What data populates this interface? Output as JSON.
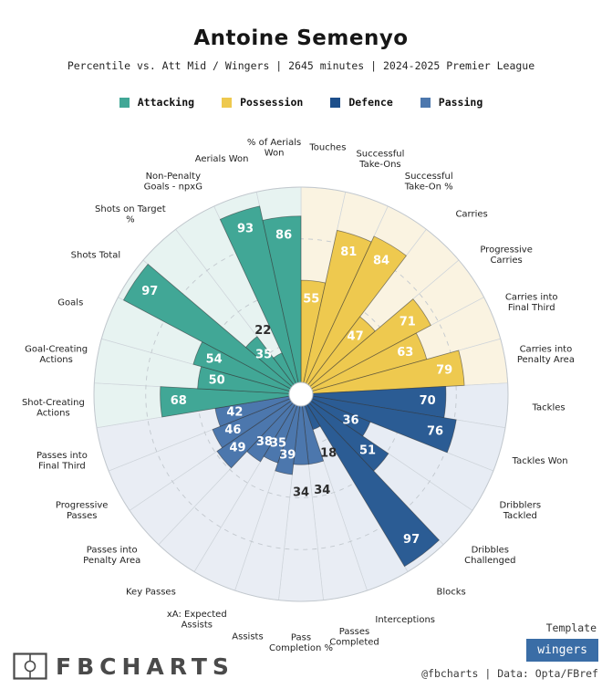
{
  "header": {
    "title": "Antoine Semenyo",
    "subtitle": "Percentile vs. Att Mid / Wingers | 2645 minutes | 2024-2025 Premier League"
  },
  "legend": [
    {
      "label": "Attacking",
      "color": "#41a796"
    },
    {
      "label": "Possession",
      "color": "#eec94f"
    },
    {
      "label": "Defence",
      "color": "#1d4f8b"
    },
    {
      "label": "Passing",
      "color": "#4c77ad"
    }
  ],
  "groups": {
    "Attacking": {
      "color": "#41a796",
      "bg": "#e7f3f1"
    },
    "Possession": {
      "color": "#eec94f",
      "bg": "#faf3e1"
    },
    "Defence": {
      "color": "#2b5c94",
      "bg": "#e7ecf4"
    },
    "Passing": {
      "color": "#4c77ad",
      "bg": "#e9edf4"
    }
  },
  "chart_data": {
    "type": "bar",
    "layout": "polar-pizza",
    "title": "Antoine Semenyo percentile pizza",
    "rlim": [
      0,
      100
    ],
    "gridlines": [
      25,
      50,
      75,
      100
    ],
    "grid_style": "dashed",
    "start": "12-oclock, clockwise",
    "slices": [
      {
        "label": "Touches",
        "value": 55,
        "group": "Possession"
      },
      {
        "label": "Successful\nTake-Ons",
        "value": 81,
        "group": "Possession"
      },
      {
        "label": "Successful\nTake-On %",
        "value": 84,
        "group": "Possession"
      },
      {
        "label": "Carries",
        "value": 47,
        "group": "Possession"
      },
      {
        "label": "Progressive\nCarries",
        "value": 71,
        "group": "Possession"
      },
      {
        "label": "Carries into\nFinal Third",
        "value": 63,
        "group": "Possession"
      },
      {
        "label": "Carries into\nPenalty Area",
        "value": 79,
        "group": "Possession"
      },
      {
        "label": "Tackles",
        "value": 70,
        "group": "Defence"
      },
      {
        "label": "Tackles Won",
        "value": 76,
        "group": "Defence"
      },
      {
        "label": "Dribblers\nTackled",
        "value": 36,
        "group": "Defence"
      },
      {
        "label": "Dribbles\nChallenged",
        "value": 51,
        "group": "Defence"
      },
      {
        "label": "Blocks",
        "value": 97,
        "group": "Defence"
      },
      {
        "label": "Interceptions",
        "value": 18,
        "group": "Defence"
      },
      {
        "label": "Passes\nCompleted",
        "value": 34,
        "group": "Passing"
      },
      {
        "label": "Pass\nCompletion %",
        "value": 34,
        "group": "Passing"
      },
      {
        "label": "Assists",
        "value": 39,
        "group": "Passing"
      },
      {
        "label": "xA: Expected\nAssists",
        "value": 35,
        "group": "Passing"
      },
      {
        "label": "Key Passes",
        "value": 38,
        "group": "Passing"
      },
      {
        "label": "Passes into\nPenalty Area",
        "value": 49,
        "group": "Passing"
      },
      {
        "label": "Progressive\nPasses",
        "value": 46,
        "group": "Passing"
      },
      {
        "label": "Passes into\nFinal Third",
        "value": 42,
        "group": "Passing"
      },
      {
        "label": "Shot-Creating\nActions",
        "value": 68,
        "group": "Attacking"
      },
      {
        "label": "Goal-Creating\nActions",
        "value": 50,
        "group": "Attacking"
      },
      {
        "label": "Goals",
        "value": 54,
        "group": "Attacking"
      },
      {
        "label": "Shots Total",
        "value": 97,
        "group": "Attacking"
      },
      {
        "label": "Shots on Target\n%",
        "value": 35,
        "group": "Attacking"
      },
      {
        "label": "Non-Penalty\nGoals - npxG",
        "value": 22,
        "group": "Attacking"
      },
      {
        "label": "Aerials Won",
        "value": 93,
        "group": "Attacking"
      },
      {
        "label": "% of Aerials\nWon",
        "value": 86,
        "group": "Attacking"
      }
    ]
  },
  "footer": {
    "brand": "FBCHARTS",
    "template_label": "Template",
    "template_value": "wingers",
    "template_color": "#3a6da6",
    "credit": "@fbcharts | Data: Opta/FBref"
  }
}
